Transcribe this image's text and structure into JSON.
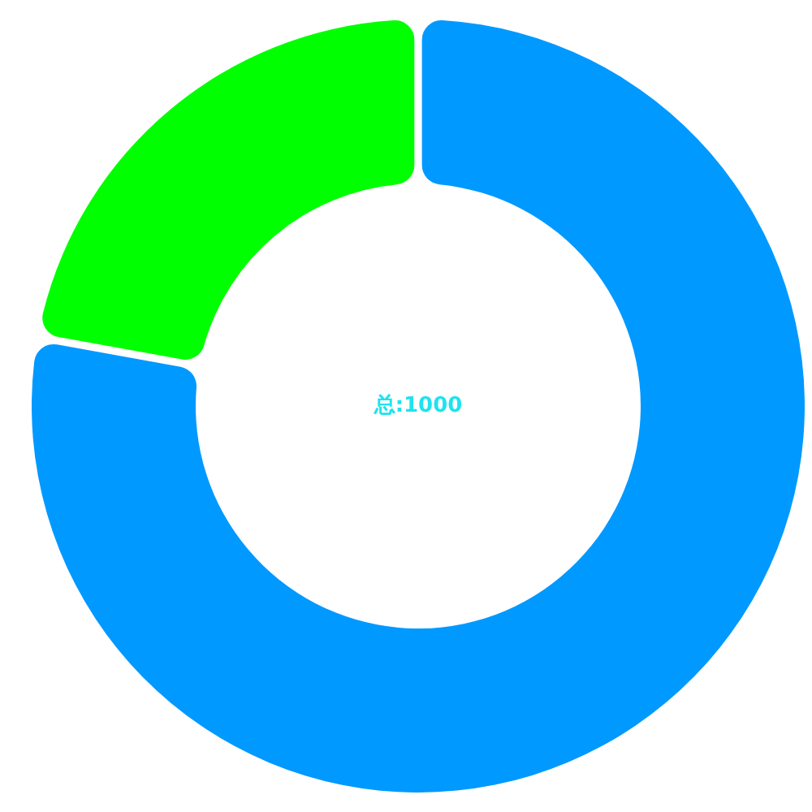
{
  "chart_data": {
    "type": "donut",
    "categories": [
      null,
      null
    ],
    "values": [
      78,
      22
    ],
    "colors": [
      "#0099ff",
      "#00ff00"
    ],
    "annotations": [
      "总:1000"
    ]
  }
}
